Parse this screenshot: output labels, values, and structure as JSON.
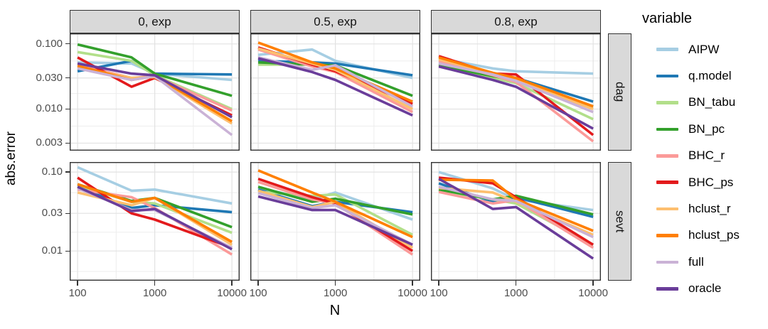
{
  "figure": {
    "y_axis_title": "abs.error",
    "x_axis_title": "N",
    "legend": {
      "title": "variable",
      "position": "right"
    }
  },
  "chart_data": {
    "type": "line",
    "title": "",
    "xlabel": "N",
    "ylabel": "abs.error",
    "x_scale": "log10",
    "y_scale": "log10",
    "grid": true,
    "x": [
      100,
      500,
      1000,
      10000
    ],
    "xlim": [
      79,
      12589
    ],
    "x_major_ticks": [
      {
        "v": 100,
        "label": "100"
      },
      {
        "v": 1000,
        "label": "1000"
      },
      {
        "v": 10000,
        "label": "10000"
      }
    ],
    "x_minor": [
      316.23,
      3162.28
    ],
    "col_facets": [
      "0, exp",
      "0.5, exp",
      "0.8, exp"
    ],
    "row_facets": [
      {
        "label": "dag",
        "ylim": [
          0.0023,
          0.145
        ],
        "y_major_ticks": [
          {
            "v": 0.1,
            "label": "0.100"
          },
          {
            "v": 0.03,
            "label": "0.030"
          },
          {
            "v": 0.01,
            "label": "0.010"
          },
          {
            "v": 0.003,
            "label": "0.003"
          }
        ],
        "y_minor": [
          0.0548,
          0.0173,
          0.00548
        ]
      },
      {
        "label": "sevt",
        "ylim": [
          0.0042,
          0.134
        ],
        "y_major_ticks": [
          {
            "v": 0.1,
            "label": "0.10"
          },
          {
            "v": 0.03,
            "label": "0.03"
          },
          {
            "v": 0.01,
            "label": "0.01"
          }
        ],
        "y_minor": [
          0.0548,
          0.0173,
          0.0055
        ]
      }
    ],
    "series": [
      {
        "name": "AIPW",
        "color": "#A6CEE3",
        "values": {
          "dag": [
            [
              0.052,
              0.05,
              0.035,
              0.028
            ],
            [
              0.068,
              0.082,
              0.055,
              0.03
            ],
            [
              0.06,
              0.042,
              0.038,
              0.035
            ]
          ],
          "sevt": [
            [
              0.115,
              0.058,
              0.06,
              0.04
            ],
            [
              0.063,
              0.045,
              0.055,
              0.025
            ],
            [
              0.1,
              0.062,
              0.045,
              0.033
            ]
          ]
        }
      },
      {
        "name": "q.model",
        "color": "#1F78B4",
        "values": {
          "dag": [
            [
              0.038,
              0.055,
              0.035,
              0.034
            ],
            [
              0.055,
              0.052,
              0.05,
              0.033
            ],
            [
              0.05,
              0.033,
              0.03,
              0.013
            ]
          ],
          "sevt": [
            [
              0.065,
              0.035,
              0.038,
              0.031
            ],
            [
              0.06,
              0.037,
              0.042,
              0.031
            ],
            [
              0.072,
              0.042,
              0.048,
              0.027
            ]
          ]
        }
      },
      {
        "name": "BN_tabu",
        "color": "#B2DF8A",
        "values": {
          "dag": [
            [
              0.075,
              0.055,
              0.033,
              0.01
            ],
            [
              0.048,
              0.048,
              0.04,
              0.013
            ],
            [
              0.048,
              0.03,
              0.025,
              0.007
            ]
          ],
          "sevt": [
            [
              0.068,
              0.042,
              0.04,
              0.017
            ],
            [
              0.056,
              0.05,
              0.052,
              0.016
            ],
            [
              0.058,
              0.045,
              0.04,
              0.012
            ]
          ]
        }
      },
      {
        "name": "BN_pc",
        "color": "#33A02C",
        "values": {
          "dag": [
            [
              0.098,
              0.062,
              0.035,
              0.016
            ],
            [
              0.052,
              0.048,
              0.047,
              0.016
            ],
            [
              0.047,
              0.032,
              0.028,
              0.011
            ]
          ],
          "sevt": [
            [
              0.07,
              0.043,
              0.047,
              0.02
            ],
            [
              0.065,
              0.042,
              0.046,
              0.029
            ],
            [
              0.06,
              0.045,
              0.05,
              0.029
            ]
          ]
        }
      },
      {
        "name": "BHC_r",
        "color": "#FB9A99",
        "values": {
          "dag": [
            [
              0.048,
              0.03,
              0.032,
              0.0095
            ],
            [
              0.082,
              0.045,
              0.037,
              0.009
            ],
            [
              0.055,
              0.033,
              0.026,
              0.0032
            ]
          ],
          "sevt": [
            [
              0.06,
              0.048,
              0.035,
              0.009
            ],
            [
              0.075,
              0.045,
              0.04,
              0.009
            ],
            [
              0.056,
              0.04,
              0.044,
              0.011
            ]
          ]
        }
      },
      {
        "name": "BHC_ps",
        "color": "#E31A1C",
        "values": {
          "dag": [
            [
              0.062,
              0.022,
              0.03,
              0.008
            ],
            [
              0.088,
              0.048,
              0.038,
              0.012
            ],
            [
              0.065,
              0.035,
              0.034,
              0.004
            ]
          ],
          "sevt": [
            [
              0.085,
              0.03,
              0.025,
              0.011
            ],
            [
              0.082,
              0.048,
              0.04,
              0.01
            ],
            [
              0.085,
              0.072,
              0.048,
              0.012
            ]
          ]
        }
      },
      {
        "name": "hclust_r",
        "color": "#FDBF6F",
        "values": {
          "dag": [
            [
              0.044,
              0.03,
              0.031,
              0.006
            ],
            [
              0.085,
              0.05,
              0.04,
              0.01
            ],
            [
              0.058,
              0.035,
              0.028,
              0.01
            ]
          ],
          "sevt": [
            [
              0.055,
              0.038,
              0.047,
              0.012
            ],
            [
              0.058,
              0.036,
              0.042,
              0.011
            ],
            [
              0.063,
              0.055,
              0.042,
              0.016
            ]
          ]
        }
      },
      {
        "name": "hclust_ps",
        "color": "#FF7F00",
        "values": {
          "dag": [
            [
              0.046,
              0.028,
              0.032,
              0.0065
            ],
            [
              0.105,
              0.052,
              0.042,
              0.013
            ],
            [
              0.062,
              0.036,
              0.03,
              0.011
            ]
          ],
          "sevt": [
            [
              0.07,
              0.042,
              0.047,
              0.013
            ],
            [
              0.105,
              0.055,
              0.042,
              0.015
            ],
            [
              0.08,
              0.078,
              0.045,
              0.018
            ]
          ]
        }
      },
      {
        "name": "full",
        "color": "#CAB2D6",
        "values": {
          "dag": [
            [
              0.042,
              0.028,
              0.032,
              0.004
            ],
            [
              0.062,
              0.04,
              0.047,
              0.011
            ],
            [
              0.05,
              0.034,
              0.027,
              0.009
            ]
          ],
          "sevt": [
            [
              0.062,
              0.033,
              0.033,
              0.011
            ],
            [
              0.054,
              0.035,
              0.038,
              0.012
            ],
            [
              0.065,
              0.045,
              0.043,
              0.015
            ]
          ]
        }
      },
      {
        "name": "oracle",
        "color": "#6A3D9A",
        "values": {
          "dag": [
            [
              0.05,
              0.035,
              0.033,
              0.0075
            ],
            [
              0.06,
              0.037,
              0.028,
              0.008
            ],
            [
              0.045,
              0.028,
              0.022,
              0.005
            ]
          ],
          "sevt": [
            [
              0.065,
              0.032,
              0.034,
              0.0105
            ],
            [
              0.049,
              0.033,
              0.033,
              0.012
            ],
            [
              0.082,
              0.034,
              0.036,
              0.008
            ]
          ]
        }
      }
    ]
  },
  "style_colors": {
    "strip_fill": "#d9d9d9",
    "panel_border": "#333333",
    "grid_major": "#e2e2e2",
    "grid_minor": "#ededed",
    "tick_text": "#4d4d4d"
  }
}
